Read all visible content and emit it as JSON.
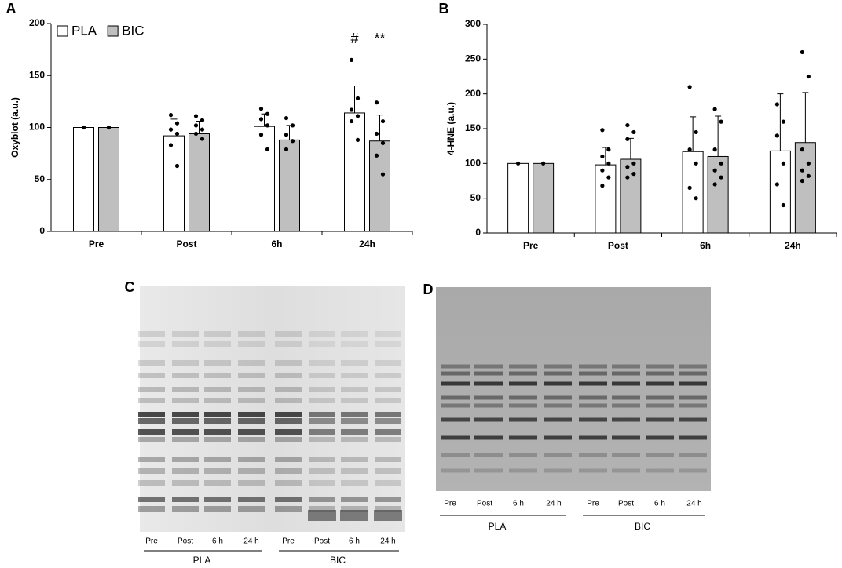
{
  "chart_data": [
    {
      "type": "bar",
      "panel": "A",
      "ylabel": "Oxyblot (a.u.)",
      "categories": [
        "Pre",
        "Post",
        "6h",
        "24h"
      ],
      "ylim": [
        0,
        200
      ],
      "yticks": [
        0,
        50,
        100,
        150,
        200
      ],
      "legend": "upper left",
      "annotations": [
        "#",
        "**"
      ],
      "series": [
        {
          "name": "PLA",
          "color": "#ffffff",
          "values": [
            100,
            92,
            101,
            114
          ],
          "errors": [
            0,
            16,
            12,
            26
          ],
          "points": [
            [
              100
            ],
            [
              112,
              104,
              98,
              94,
              83,
              63
            ],
            [
              118,
              113,
              108,
              102,
              93,
              79
            ],
            [
              165,
              128,
              117,
              111,
              106,
              88
            ]
          ]
        },
        {
          "name": "BIC",
          "color": "#bfbfbf",
          "values": [
            100,
            94,
            88,
            87
          ],
          "errors": [
            0,
            12,
            14,
            25
          ],
          "points": [
            [
              100
            ],
            [
              111,
              107,
              102,
              98,
              94,
              89
            ],
            [
              109,
              102,
              93,
              87,
              79
            ],
            [
              124,
              106,
              94,
              85,
              73,
              55
            ]
          ]
        }
      ]
    },
    {
      "type": "bar",
      "panel": "B",
      "ylabel": "4-HNE (a.u.)",
      "categories": [
        "Pre",
        "Post",
        "6h",
        "24h"
      ],
      "ylim": [
        0,
        300
      ],
      "yticks": [
        0,
        50,
        100,
        150,
        200,
        250,
        300
      ],
      "series": [
        {
          "name": "PLA",
          "color": "#ffffff",
          "values": [
            100,
            98,
            117,
            118
          ],
          "errors": [
            0,
            25,
            50,
            82
          ],
          "points": [
            [
              100
            ],
            [
              148,
              120,
              110,
              100,
              90,
              80,
              68
            ],
            [
              210,
              145,
              120,
              100,
              65,
              50
            ],
            [
              185,
              160,
              140,
              100,
              70,
              40
            ]
          ]
        },
        {
          "name": "BIC",
          "color": "#bfbfbf",
          "values": [
            100,
            106,
            110,
            130
          ],
          "errors": [
            0,
            30,
            58,
            72
          ],
          "points": [
            [
              100
            ],
            [
              155,
              145,
              135,
              100,
              95,
              85,
              80
            ],
            [
              178,
              160,
              120,
              100,
              90,
              80,
              70
            ],
            [
              260,
              225,
              120,
              100,
              90,
              82,
              75
            ]
          ]
        }
      ]
    }
  ],
  "blots": [
    {
      "panel": "C",
      "lanes": [
        "Pre",
        "Post",
        "6 h",
        "24 h",
        "Pre",
        "Post",
        "6 h",
        "24 h"
      ],
      "groups": [
        "PLA",
        "BIC"
      ]
    },
    {
      "panel": "D",
      "lanes": [
        "Pre",
        "Post",
        "6 h",
        "24 h",
        "Pre",
        "Post",
        "6 h",
        "24 h"
      ],
      "groups": [
        "PLA",
        "BIC"
      ]
    }
  ]
}
